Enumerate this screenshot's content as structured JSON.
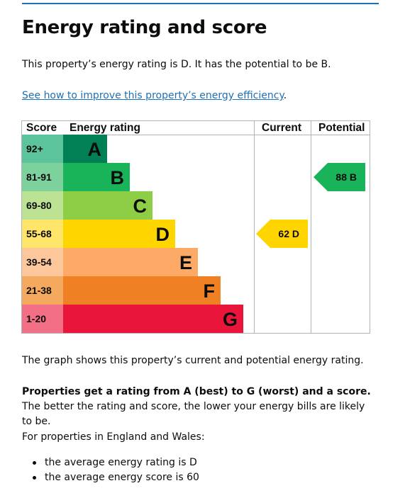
{
  "page": {
    "title": "Energy rating and score",
    "summary": "This property’s energy rating is D. It has the potential to be B.",
    "improve_link": "See how to improve this property’s energy efficiency",
    "improve_link_suffix": ".",
    "graph_note": "The graph shows this property’s current and potential energy rating.",
    "rating_bold": "Properties get a rating from A (best) to G (worst) and a score.",
    "rating_rest": " The better the rating and score, the lower your energy bills are likely to be.",
    "region_note": "For properties in England and Wales:",
    "bullets": [
      "the average energy rating is D",
      "the average energy score is 60"
    ]
  },
  "chart_data": {
    "type": "table",
    "headers": {
      "score": "Score",
      "rating": "Energy rating",
      "current": "Current",
      "potential": "Potential"
    },
    "bands": [
      {
        "score": "92+",
        "letter": "A",
        "color": "#008054",
        "score_bg": "#5cc49a"
      },
      {
        "score": "81-91",
        "letter": "B",
        "color": "#19b459",
        "score_bg": "#7dd19c"
      },
      {
        "score": "69-80",
        "letter": "C",
        "color": "#8dce46",
        "score_bg": "#bce393"
      },
      {
        "score": "55-68",
        "letter": "D",
        "color": "#ffd500",
        "score_bg": "#ffe66a"
      },
      {
        "score": "39-54",
        "letter": "E",
        "color": "#fcaa65",
        "score_bg": "#fdc79b"
      },
      {
        "score": "21-38",
        "letter": "F",
        "color": "#ef8023",
        "score_bg": "#f5a95f"
      },
      {
        "score": "1-20",
        "letter": "G",
        "color": "#e9153b",
        "score_bg": "#f26f85"
      }
    ],
    "current": {
      "score": 62,
      "letter": "D",
      "label": "62  D",
      "color": "#ffd500"
    },
    "potential": {
      "score": 88,
      "letter": "B",
      "label": "88  B",
      "color": "#19b459"
    }
  }
}
